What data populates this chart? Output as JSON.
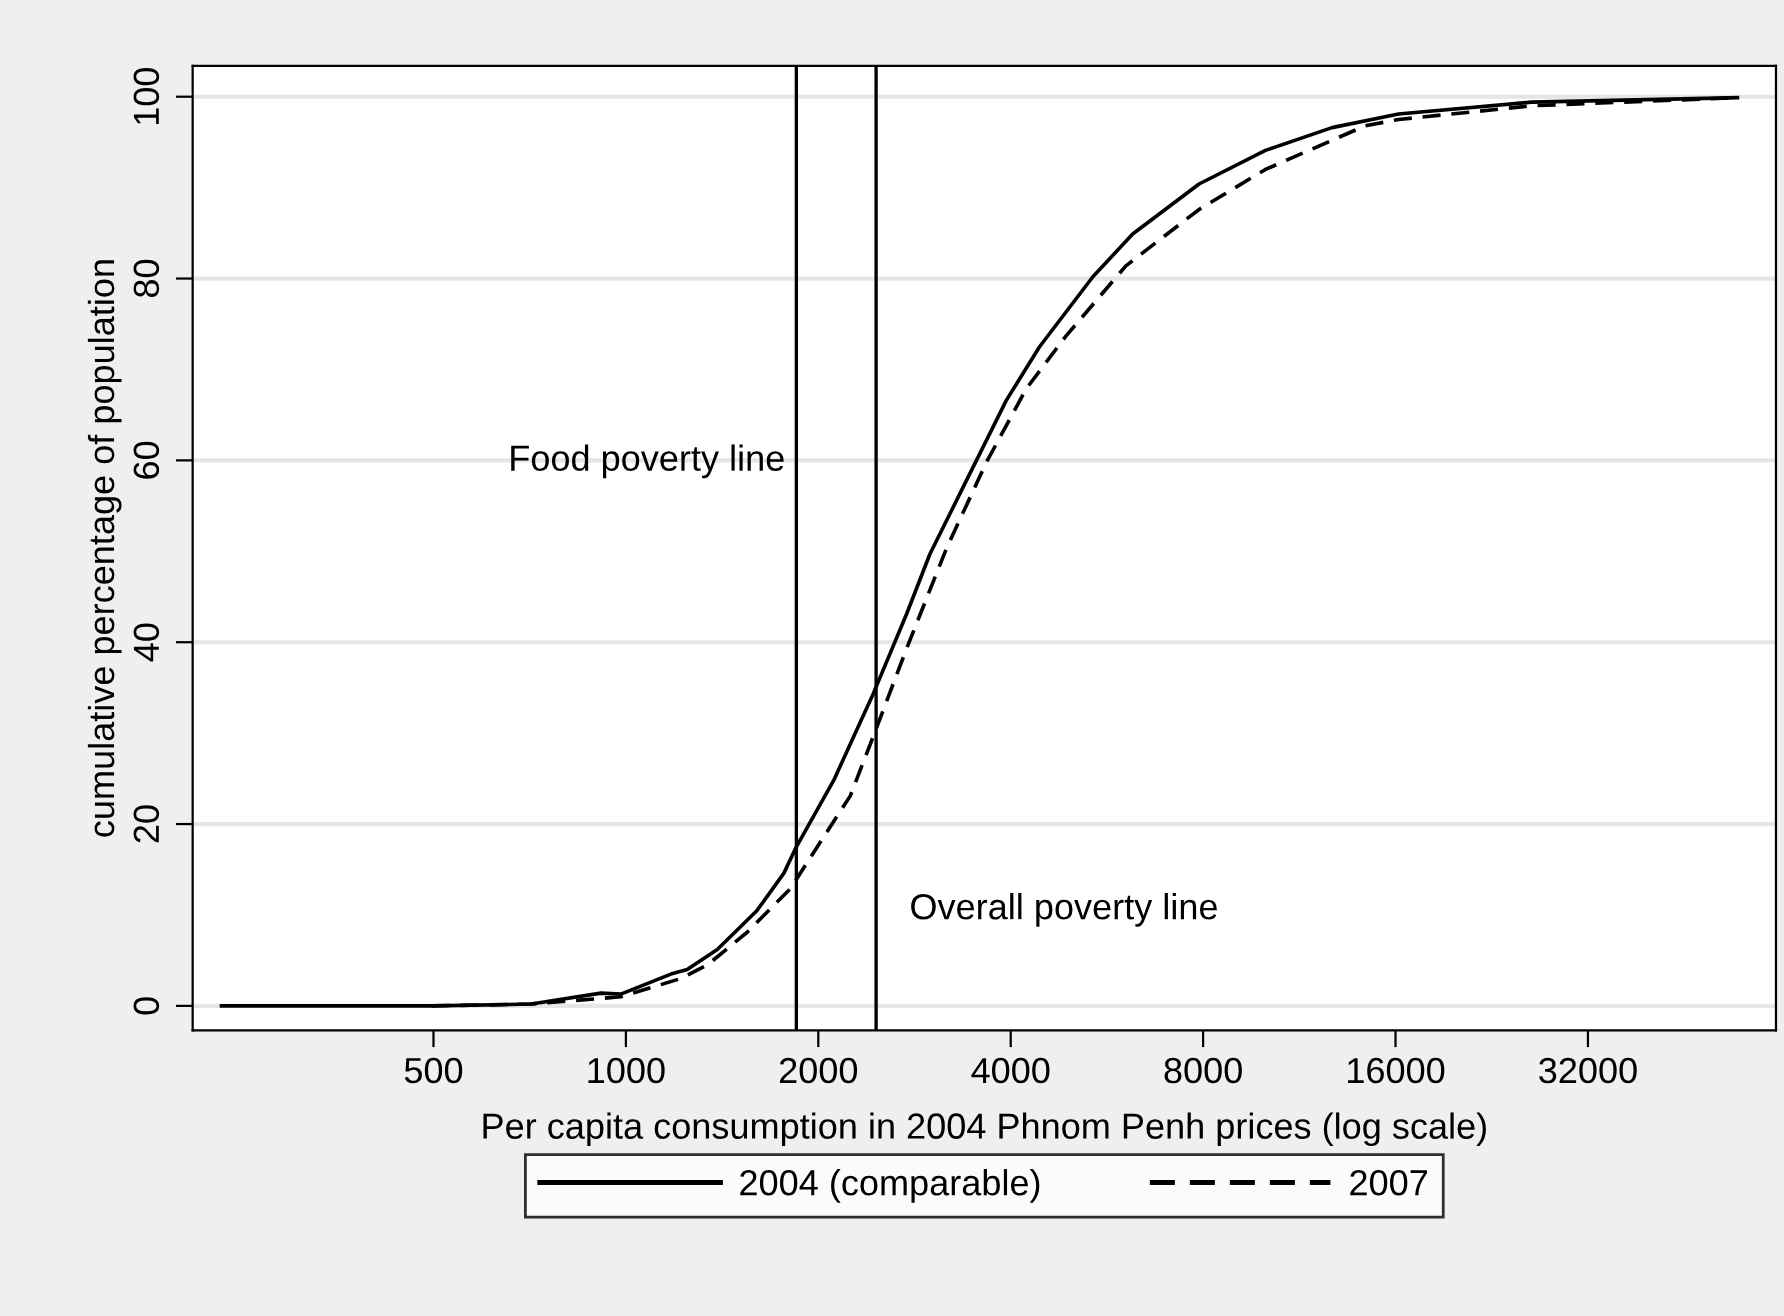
{
  "chart_data": {
    "type": "line",
    "xlabel": "Per capita consumption in 2004 Phnom Penh prices (log scale)",
    "ylabel": "cumulative percentage of population",
    "log": "x",
    "xlim": [
      210,
      63000
    ],
    "ylim": [
      -2.7,
      103.4
    ],
    "xticks": [
      500,
      1000,
      2000,
      4000,
      8000,
      16000,
      32000
    ],
    "yticks": [
      0,
      20,
      40,
      60,
      80,
      100
    ],
    "grid": "y",
    "legend": "bottom",
    "series": [
      {
        "name": "2004 (comparable)",
        "color": "#000000",
        "line_style": "solid",
        "x": [
          233,
          497,
          711,
          914,
          982,
          1176,
          1247,
          1390,
          1604,
          1767,
          1848,
          2114,
          2440,
          2749,
          2990,
          3411,
          3937,
          4438,
          5378,
          6207,
          7884,
          10015,
          12728,
          16177,
          26113,
          54830
        ],
        "values": [
          0,
          0,
          0.2,
          1.4,
          1.3,
          3.5,
          4.0,
          6.2,
          10.5,
          14.6,
          17.5,
          24.8,
          34.4,
          43.1,
          49.7,
          57.8,
          66.6,
          72.5,
          80.2,
          84.9,
          90.4,
          94.1,
          96.6,
          98.1,
          99.4,
          99.9
        ]
      },
      {
        "name": "2007",
        "color": "#000000",
        "line_style": "dashed",
        "x": [
          497,
          711,
          982,
          1218,
          1341,
          1548,
          1809,
          2014,
          2244,
          2440,
          2749,
          3173,
          3665,
          4232,
          4884,
          6058,
          7884,
          10015,
          14340,
          16177,
          26113,
          54830
        ],
        "values": [
          0,
          0.2,
          1.0,
          3.0,
          4.5,
          8.1,
          12.9,
          18.0,
          23.1,
          29.7,
          39.3,
          50.3,
          59.8,
          67.9,
          73.7,
          81.4,
          87.6,
          92.0,
          96.8,
          97.5,
          99.0,
          99.9
        ]
      }
    ],
    "ref_lines": [
      {
        "axis": "x",
        "value": 1848,
        "color": "#000000",
        "label": "Food poverty line"
      },
      {
        "axis": "x",
        "value": 2463,
        "color": "#000000",
        "label": "Overall poverty line"
      }
    ]
  }
}
